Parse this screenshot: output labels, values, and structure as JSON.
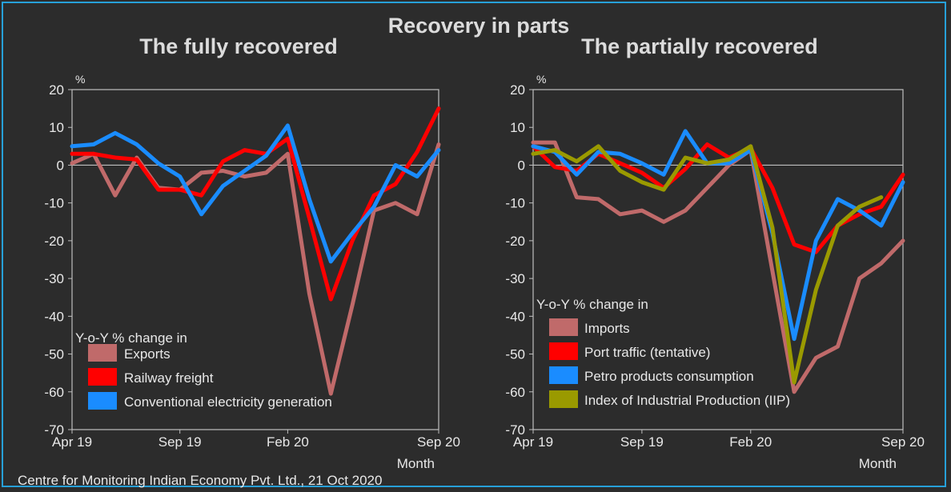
{
  "header": {
    "main_title": "Recovery in parts",
    "left_title": "The fully recovered",
    "right_title": "The partially recovered"
  },
  "footer": {
    "source": "Centre for Monitoring Indian Economy Pvt. Ltd., 21 Oct 2020"
  },
  "colors": {
    "background": "#2c2c2c",
    "border": "#27a0d8",
    "grid": "#bfbfbf",
    "exports": "#c06a6a",
    "railway": "#ff0000",
    "electricity": "#1a8cff",
    "imports": "#c06a6a",
    "port": "#ff0000",
    "petro": "#1a8cff",
    "iip": "#9a9a00"
  },
  "chart_data": [
    {
      "type": "line",
      "title": "The fully recovered",
      "ylabel": "%",
      "xlabel": "Month",
      "ylim": [
        -70,
        20
      ],
      "yticks": [
        "20",
        "10",
        "0",
        "-10",
        "-20",
        "-30",
        "-40",
        "-50",
        "-60",
        "-70"
      ],
      "x": [
        "Apr 19",
        "May 19",
        "Jun 19",
        "Jul 19",
        "Aug 19",
        "Sep 19",
        "Oct 19",
        "Nov 19",
        "Dec 19",
        "Jan 20",
        "Feb 20",
        "Mar 20",
        "Apr 20",
        "May 20",
        "Jun 20",
        "Jul 20",
        "Aug 20",
        "Sep 20"
      ],
      "xtick_labels": [
        "Apr 19",
        "Sep 19",
        "Feb 20",
        "Sep 20"
      ],
      "legend_title": "Y-o-Y % change in",
      "series": [
        {
          "name": "Exports",
          "color_key": "exports",
          "values": [
            0.5,
            3,
            -8,
            2,
            -6,
            -6.5,
            -2,
            -1.5,
            -3,
            -2,
            3,
            -34,
            -60.5,
            -37,
            -12,
            -10,
            -13,
            5.5
          ]
        },
        {
          "name": "Railway freight",
          "color_key": "railway",
          "values": [
            3,
            3,
            2,
            1.5,
            -6.5,
            -6.5,
            -8,
            1,
            4,
            3,
            7,
            -14,
            -35.5,
            -20,
            -8,
            -5,
            3.5,
            15
          ]
        },
        {
          "name": "Conventional electricity generation",
          "color_key": "electricity",
          "values": [
            5,
            5.5,
            8.5,
            5.5,
            0.5,
            -3,
            -13,
            -5.5,
            -1.5,
            2.5,
            10.5,
            -9,
            -25.5,
            -18,
            -11,
            0,
            -3,
            4
          ]
        }
      ]
    },
    {
      "type": "line",
      "title": "The partially recovered",
      "ylabel": "%",
      "xlabel": "Month",
      "ylim": [
        -70,
        20
      ],
      "yticks": [
        "20",
        "10",
        "0",
        "-10",
        "-20",
        "-30",
        "-40",
        "-50",
        "-60",
        "-70"
      ],
      "x": [
        "Apr 19",
        "May 19",
        "Jun 19",
        "Jul 19",
        "Aug 19",
        "Sep 19",
        "Oct 19",
        "Nov 19",
        "Dec 19",
        "Jan 20",
        "Feb 20",
        "Mar 20",
        "Apr 20",
        "May 20",
        "Jun 20",
        "Jul 20",
        "Aug 20",
        "Sep 20"
      ],
      "xtick_labels": [
        "Apr 19",
        "Sep 19",
        "Feb 20",
        "Sep 20"
      ],
      "legend_title": "Y-o-Y % change in",
      "series": [
        {
          "name": "Imports",
          "color_key": "imports",
          "values": [
            6,
            6,
            -8.5,
            -9,
            -13,
            -12,
            -15,
            -12,
            -6,
            0,
            4,
            -28,
            -60,
            -51,
            -48,
            -30,
            -26,
            -20
          ]
        },
        {
          "name": "Port traffic (tentative)",
          "color_key": "port",
          "values": [
            5,
            -0.5,
            -1.5,
            3,
            0.5,
            -2,
            -6,
            -1,
            5.5,
            2,
            4.5,
            -6,
            -21,
            -23,
            -16,
            -13,
            -11,
            -2.5
          ]
        },
        {
          "name": "Petro products consumption",
          "color_key": "petro",
          "values": [
            5,
            3.5,
            -2.5,
            3.5,
            3,
            0.5,
            -2.5,
            9,
            0.5,
            0.5,
            4,
            -18,
            -46,
            -20,
            -9,
            -12,
            -16,
            -4.5
          ]
        },
        {
          "name": "Index of Industrial Production (IIP)",
          "color_key": "iip",
          "values": [
            3,
            4,
            1,
            5,
            -1.5,
            -4.5,
            -6.5,
            2,
            0.5,
            1.5,
            5,
            -16.5,
            -57.5,
            -33,
            -16,
            -11,
            -8.5,
            null
          ]
        }
      ]
    }
  ]
}
